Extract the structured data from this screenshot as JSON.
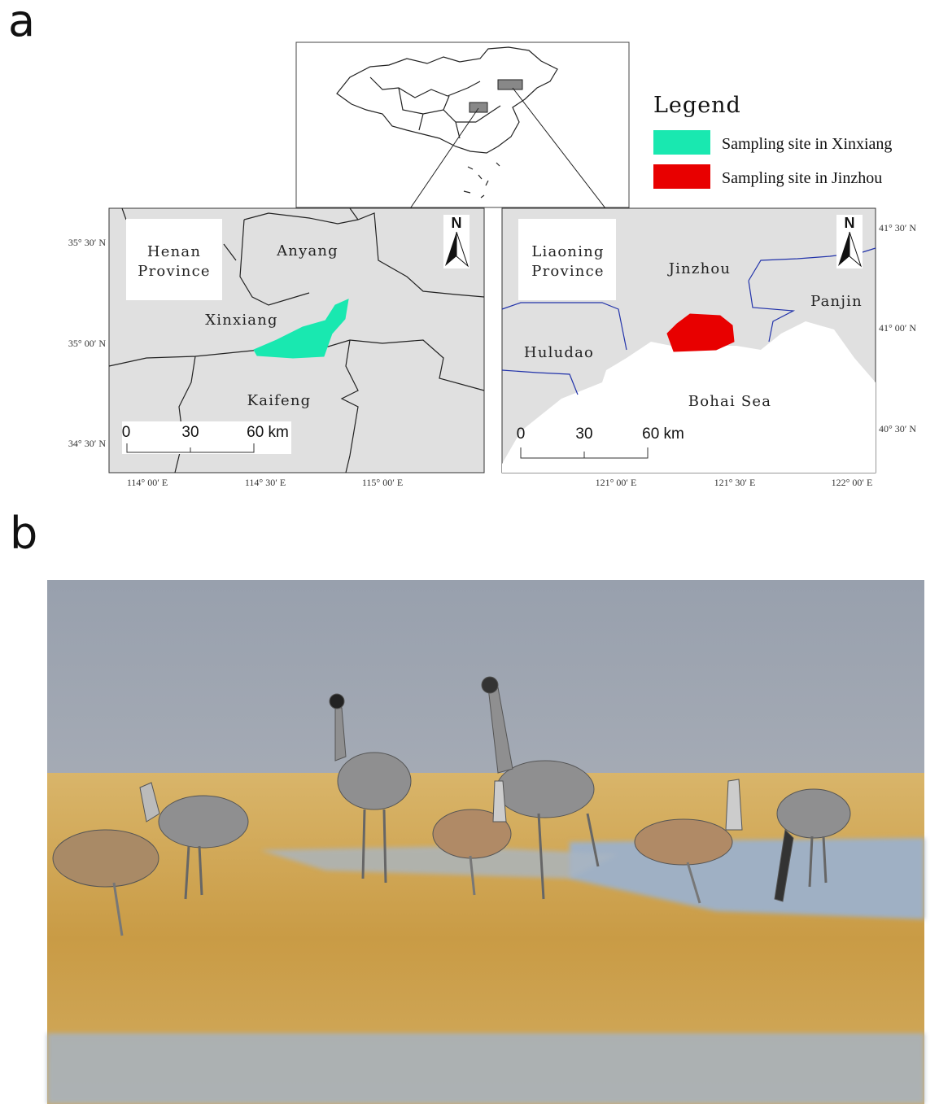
{
  "panel_labels": [
    "a",
    "b"
  ],
  "legend": {
    "title": "Legend",
    "items": [
      {
        "label": "Sampling site in Xinxiang",
        "color": "#19e8b0"
      },
      {
        "label": "Sampling site in Jinzhou",
        "color": "#e80000"
      }
    ]
  },
  "maps": [
    {
      "region_label": [
        "Henan",
        "Province"
      ],
      "places": [
        "Anyang",
        "Xinxiang",
        "Kaifeng"
      ],
      "north": "N",
      "scale": [
        "0",
        "30",
        "60 km"
      ],
      "lat_labels": [
        "35° 30′ N",
        "35° 00′ N",
        "34° 30′ N"
      ],
      "lon_labels": [
        "114° 00′ E",
        "114° 30′ E",
        "115° 00′ E"
      ]
    },
    {
      "region_label": [
        "Liaoning",
        "Province"
      ],
      "places": [
        "Jinzhou",
        "Panjin",
        "Huludao",
        "Bohai Sea"
      ],
      "north": "N",
      "scale": [
        "0",
        "30",
        "60 km"
      ],
      "lat_labels": [
        "41° 30′ N",
        "41° 00′ N",
        "40° 30′ N"
      ],
      "lon_labels": [
        "121° 00′ E",
        "121° 30′ E",
        "122° 00′ E"
      ]
    }
  ]
}
